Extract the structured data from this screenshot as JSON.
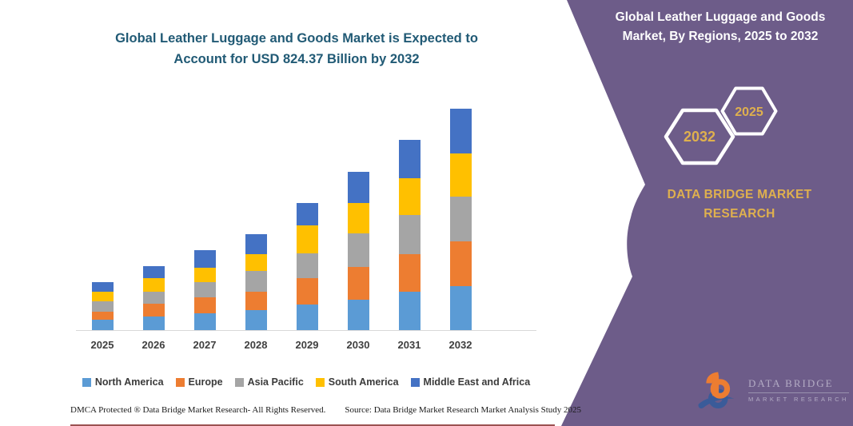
{
  "left_panel": {
    "title": "Global Leather Luggage and Goods Market is Expected to Account for USD 824.37 Billion by 2032",
    "footer_left": "DMCA Protected ® Data Bridge Market Research-  All Rights Reserved.",
    "footer_source": "Source: Data Bridge Market Research  Market Analysis Study 2025"
  },
  "chart_data": {
    "type": "bar",
    "stacked": true,
    "title": "Global Leather Luggage and Goods Market is Expected to Account for USD 824.37 Billion by 2032",
    "unit": "USD Billion",
    "categories": [
      "2025",
      "2026",
      "2027",
      "2028",
      "2029",
      "2030",
      "2031",
      "2032"
    ],
    "series": [
      {
        "name": "North America",
        "color": "#5B9BD5",
        "values": [
          38,
          52,
          63,
          74,
          95,
          114,
          142,
          164
        ]
      },
      {
        "name": "Europe",
        "color": "#ED7D31",
        "values": [
          30,
          45,
          58,
          69,
          100,
          122,
          141,
          167
        ]
      },
      {
        "name": "Asia Pacific",
        "color": "#A5A5A5",
        "values": [
          40,
          45,
          57,
          77,
          90,
          124,
          145,
          165
        ]
      },
      {
        "name": "South America",
        "color": "#FFC000",
        "values": [
          34,
          52,
          54,
          62,
          106,
          112,
          138,
          163
        ]
      },
      {
        "name": "Middle East and Africa",
        "color": "#4472C4",
        "values": [
          37,
          44,
          66,
          75,
          82,
          118,
          142,
          165.37
        ]
      }
    ],
    "totals": [
      179,
      238,
      298,
      357,
      473,
      590,
      708,
      824.37
    ],
    "ylim": [
      0,
      830
    ],
    "gridlines": false,
    "legend_position": "bottom",
    "xlabel": "",
    "ylabel": ""
  },
  "right_panel": {
    "heading": "Global Leather Luggage and Goods Market, By Regions, 2025 to 2032",
    "hexagon_back_label": "2032",
    "hexagon_front_label": "2025",
    "brand_text": "DATA BRIDGE MARKET RESEARCH",
    "logo_line1": "DATA BRIDGE",
    "logo_line2": "MARKET RESEARCH"
  },
  "colors": {
    "panel_purple": "#6D5C89",
    "gold": "#DFB04E",
    "chart_title_teal": "#215A75",
    "axis_line": "#D9D9D9",
    "axis_label": "#3F3F3F",
    "bottom_red_line": "#8A3434",
    "logo_orange": "#ED7D31",
    "logo_blue": "#3A5B99"
  }
}
